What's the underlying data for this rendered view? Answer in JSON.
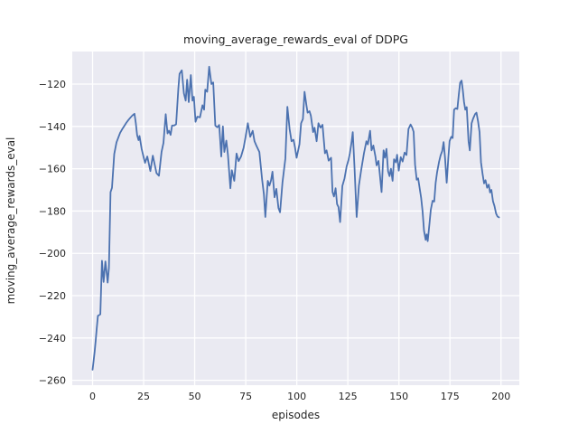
{
  "figure": {
    "title": "moving_average_rewards_eval of DDPG",
    "xlabel": "episodes",
    "ylabel": "moving_average_rewards_eval"
  },
  "chart_data": {
    "type": "line",
    "title": "moving_average_rewards_eval of DDPG",
    "xlabel": "episodes",
    "ylabel": "moving_average_rewards_eval",
    "style": "seaborn-darkgrid",
    "grid": true,
    "legend": "none",
    "plot_bg_color": "#EAEAF2",
    "grid_color": "#FFFFFF",
    "line_color": "#4C72B0",
    "text_color": "#262626",
    "x_ticks": [
      0,
      25,
      50,
      75,
      100,
      125,
      150,
      175,
      200
    ],
    "y_ticks": [
      -120,
      -140,
      -160,
      -180,
      -200,
      -220,
      -240,
      -260
    ],
    "xlim": [
      -9.95,
      208.95
    ],
    "ylim": [
      -262.3,
      -104.6
    ],
    "series": [
      {
        "name": "moving_average_rewards_eval",
        "x": [
          0,
          0.5,
          1,
          1.5,
          2,
          2.6,
          3.2,
          3.8,
          4.6,
          5.4,
          6.3,
          7,
          7.4,
          8,
          8.8,
          9.5,
          10.6,
          11.7,
          12.5,
          13.5,
          14.5,
          15.5,
          16.5,
          17.5,
          18.5,
          19.5,
          20.5,
          21.2,
          21.8,
          22.5,
          23,
          24,
          25,
          25.7,
          26.8,
          28.3,
          29.5,
          31.3,
          32.5,
          33.8,
          34.7,
          35.8,
          36.7,
          37.4,
          38.2,
          38.9,
          40,
          40.9,
          42,
          42.6,
          43.7,
          44.7,
          45.6,
          46.3,
          47.1,
          48.1,
          48.9,
          49.6,
          50.4,
          51.3,
          52.6,
          53.8,
          54.6,
          55.2,
          56.1,
          57.1,
          58.2,
          59.1,
          60.1,
          61.1,
          62,
          63,
          63.8,
          64.5,
          65.5,
          66.3,
          67.5,
          68.2,
          69.4,
          70.5,
          71.5,
          72.7,
          74,
          75,
          76,
          77.2,
          78.4,
          79.3,
          80.2,
          81.7,
          83,
          83.9,
          84.6,
          85.8,
          86.6,
          87.4,
          88.1,
          89.1,
          90,
          91,
          91.8,
          93,
          94.4,
          95.4,
          96.5,
          97.4,
          98.4,
          99.1,
          99.9,
          101.3,
          102.1,
          103,
          103.8,
          104.7,
          105.3,
          106.2,
          106.9,
          108,
          108.7,
          109.7,
          110.6,
          111.6,
          112.6,
          113.8,
          114.6,
          115.6,
          116.8,
          117.5,
          118.2,
          119,
          119.7,
          120.4,
          121.2,
          122.3,
          123.4,
          124.4,
          125.3,
          126,
          126.8,
          127.4,
          128.3,
          129.3,
          130.4,
          131.5,
          132.9,
          134.1,
          134.8,
          135.9,
          136.6,
          137.5,
          138.5,
          139.1,
          140,
          140.6,
          141.5,
          142.5,
          143.2,
          143.9,
          144.7,
          145.4,
          146.1,
          146.9,
          147.6,
          148.5,
          149.1,
          149.9,
          150.9,
          151.8,
          152.8,
          153.7,
          154.7,
          155.7,
          156.5,
          157.2,
          157.9,
          158.7,
          159.4,
          160.1,
          160.9,
          161.6,
          162.3,
          163.1,
          163.6,
          164.1,
          165,
          165.6,
          166.5,
          167.3,
          168,
          168.7,
          169.7,
          170.4,
          171.2,
          171.9,
          172.6,
          173.4,
          174.2,
          174.8,
          175.6,
          176.3,
          177,
          177.8,
          178.6,
          179.3,
          180,
          180.7,
          181.3,
          181.9,
          182.5,
          183.2,
          184.1,
          184.7,
          185.6,
          186.3,
          187.3,
          188,
          188.8,
          189.5,
          190.2,
          191,
          191.7,
          192.4,
          193.2,
          194,
          194.6,
          195.3,
          196.1,
          196.8,
          197.6,
          198.3,
          199
        ],
        "y": [
          -255,
          -251,
          -246.5,
          -241.5,
          -236,
          -229.5,
          -229.2,
          -228.8,
          -203.5,
          -213.5,
          -203.8,
          -210,
          -213.8,
          -207,
          -171,
          -169,
          -153,
          -147.5,
          -145.5,
          -143,
          -141.3,
          -139.8,
          -138.3,
          -137,
          -135.9,
          -134.8,
          -134,
          -138.5,
          -144,
          -146.5,
          -144.5,
          -150.5,
          -154.5,
          -157.2,
          -154.2,
          -161.1,
          -153.8,
          -162.1,
          -163.3,
          -152,
          -147.8,
          -134.2,
          -143.3,
          -142,
          -144,
          -139.6,
          -139.5,
          -139,
          -122,
          -115.1,
          -113.5,
          -124.3,
          -127.8,
          -117.9,
          -128.5,
          -115.7,
          -127.8,
          -126,
          -137.8,
          -135.4,
          -135.7,
          -130,
          -132.1,
          -122.6,
          -123.6,
          -111.8,
          -120,
          -119.2,
          -139.6,
          -140.4,
          -139.3,
          -154.2,
          -140,
          -152.1,
          -146.7,
          -153.5,
          -169.2,
          -160.7,
          -165.7,
          -152.8,
          -156.4,
          -154.2,
          -150,
          -144.5,
          -138.5,
          -144.9,
          -142.1,
          -147,
          -149.1,
          -152.1,
          -165,
          -172.1,
          -182.8,
          -165.7,
          -168,
          -165.5,
          -161.4,
          -173.5,
          -169.5,
          -178.5,
          -180.6,
          -166.4,
          -155.1,
          -130.7,
          -141.3,
          -147,
          -146.3,
          -149.8,
          -154.8,
          -148.4,
          -138.5,
          -136.5,
          -123.6,
          -130,
          -133.5,
          -132.8,
          -134.9,
          -142.7,
          -140.6,
          -147,
          -138.5,
          -140.6,
          -139.2,
          -152.7,
          -151.3,
          -156.2,
          -154.8,
          -171,
          -173.1,
          -169.2,
          -176.7,
          -178.1,
          -185.2,
          -168.1,
          -164.5,
          -158.9,
          -156,
          -152.7,
          -147.7,
          -142.7,
          -160,
          -182.8,
          -168,
          -160.7,
          -152.7,
          -147,
          -148.5,
          -142.1,
          -151.3,
          -149,
          -154.2,
          -158.4,
          -156.3,
          -161.9,
          -171,
          -151.3,
          -154.8,
          -150.6,
          -161.2,
          -163.5,
          -160,
          -165.7,
          -155.5,
          -157,
          -153.4,
          -160.9,
          -154.5,
          -156.6,
          -152.4,
          -153.5,
          -141.2,
          -139.1,
          -140.5,
          -142.6,
          -158.1,
          -165.2,
          -164.5,
          -168.7,
          -173.7,
          -180.1,
          -189.3,
          -193.6,
          -191,
          -194.2,
          -185.7,
          -179.4,
          -175.1,
          -175.5,
          -166.6,
          -161.6,
          -156.6,
          -153.8,
          -151.7,
          -147.4,
          -155,
          -166.6,
          -155,
          -147,
          -144.9,
          -145.5,
          -132.1,
          -131.4,
          -131.8,
          -125,
          -119.3,
          -118.3,
          -123,
          -128.5,
          -132.1,
          -130.9,
          -147,
          -151.3,
          -138.5,
          -136.4,
          -134.2,
          -133.5,
          -137.8,
          -142.7,
          -157,
          -162.6,
          -166.9,
          -165.4,
          -169,
          -167.5,
          -171.2,
          -170,
          -175.4,
          -177.6,
          -181.2,
          -182.6,
          -183
        ]
      }
    ]
  }
}
